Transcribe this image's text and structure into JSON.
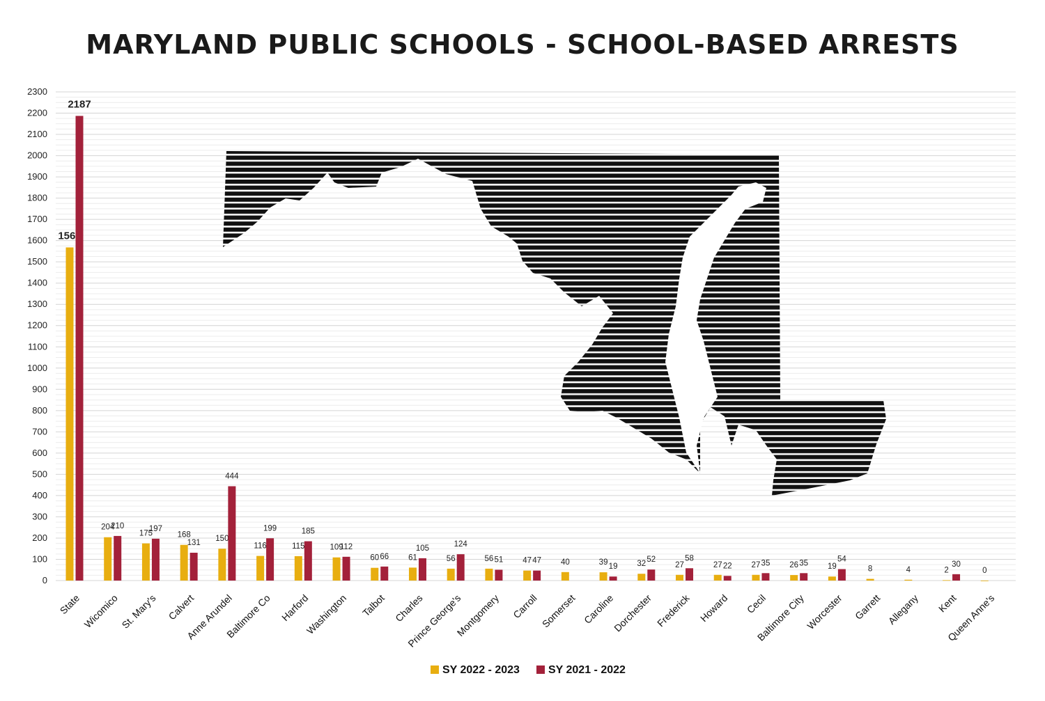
{
  "chart_data": {
    "type": "bar",
    "title": "MARYLAND PUBLIC SCHOOLS - SCHOOL-BASED ARRESTS",
    "categories": [
      "State",
      "Wicomico",
      "St. Mary's",
      "Calvert",
      "Anne Arundel",
      "Baltimore Co",
      "Harford",
      "Washington",
      "Talbot",
      "Charles",
      "Prince George's",
      "Montgomery",
      "Carroll",
      "Somerset",
      "Caroline",
      "Dorchester",
      "Frederick",
      "Howard",
      "Cecil",
      "Baltimore City",
      "Worcester",
      "Garrett",
      "Allegany",
      "Kent",
      "Queen Anne's"
    ],
    "series": [
      {
        "name": "SY 2022 - 2023",
        "color": "#E8AE10",
        "values": [
          1568,
          204,
          175,
          168,
          150,
          116,
          115,
          109,
          60,
          61,
          56,
          56,
          47,
          40,
          39,
          32,
          27,
          27,
          27,
          26,
          19,
          8,
          4,
          2,
          0
        ],
        "labels": [
          "1568",
          "204",
          "175",
          "168",
          "150",
          "116",
          "115",
          "109",
          "60",
          "61",
          "56",
          "56",
          "47",
          "40",
          "39",
          "32",
          "27",
          "27",
          "27",
          "26",
          "19",
          "8",
          "4",
          "2",
          "0"
        ]
      },
      {
        "name": "SY 2021 - 2022",
        "color": "#A3213A",
        "values": [
          2187,
          210,
          197,
          131,
          444,
          199,
          185,
          112,
          66,
          105,
          124,
          51,
          47,
          null,
          19,
          52,
          58,
          22,
          35,
          35,
          54,
          null,
          null,
          30,
          null
        ],
        "labels": [
          "2187",
          "210",
          "197",
          "131",
          "444",
          "199",
          "185",
          "112",
          "66",
          "105",
          "124",
          "51",
          "47",
          "",
          "19",
          "52",
          "58",
          "22",
          "35",
          "35",
          "54",
          "",
          "",
          "30",
          ""
        ]
      }
    ],
    "yticks": [
      "0",
      "100",
      "200",
      "300",
      "400",
      "500",
      "600",
      "700",
      "800",
      "900",
      "1000",
      "1100",
      "1200",
      "1300",
      "1400",
      "1500",
      "1600",
      "1700",
      "1800",
      "1900",
      "2000",
      "2100",
      "2200",
      "2300"
    ],
    "ylim": [
      0,
      2300
    ],
    "xlabel": "",
    "ylabel": "",
    "legend_position": "bottom-center",
    "grid": true,
    "background_art": "maryland-map-silhouette"
  }
}
